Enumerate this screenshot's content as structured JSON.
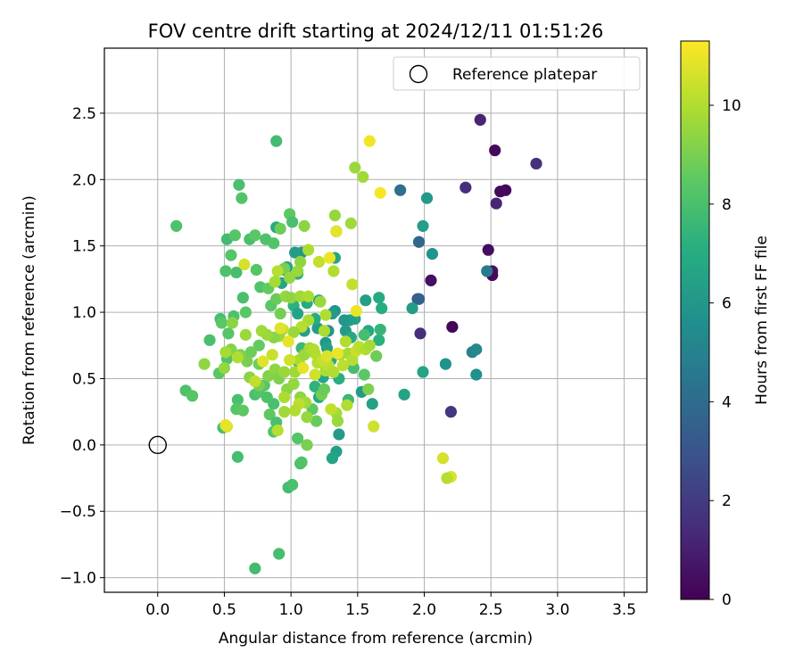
{
  "chart_data": {
    "type": "scatter",
    "title": "FOV centre drift starting at 2024/12/11 01:51:26",
    "xlabel": "Angular distance from reference (arcmin)",
    "ylabel": "Rotation from reference (arcmin)",
    "xlim": [
      -0.4,
      3.67
    ],
    "ylim": [
      -1.11,
      2.99
    ],
    "xticks": [
      "0.0",
      "0.5",
      "1.0",
      "1.5",
      "2.0",
      "2.5",
      "3.0",
      "3.5"
    ],
    "xtick_values": [
      0,
      0.5,
      1,
      1.5,
      2,
      2.5,
      3,
      3.5
    ],
    "yticks": [
      "−1.0",
      "−0.5",
      "0.0",
      "0.5",
      "1.0",
      "1.5",
      "2.0",
      "2.5"
    ],
    "ytick_values": [
      -1,
      -0.5,
      0,
      0.5,
      1,
      1.5,
      2,
      2.5
    ],
    "grid": true,
    "legend": {
      "placement": "top-right",
      "entries": [
        {
          "label": "Reference platepar",
          "marker": "open-circle"
        }
      ]
    },
    "reference": {
      "x": 0,
      "y": 0
    },
    "colorbar": {
      "label": "Hours from first FF file",
      "ticks": [
        "0",
        "2",
        "4",
        "6",
        "8",
        "10"
      ],
      "tick_values": [
        0,
        2,
        4,
        6,
        8,
        10
      ],
      "range": [
        0,
        11.3
      ],
      "colormap": "viridis"
    },
    "points": [
      [
        2.42,
        2.45,
        1.2
      ],
      [
        2.84,
        2.12,
        1.6
      ],
      [
        2.31,
        1.94,
        1.5
      ],
      [
        2.61,
        1.92,
        0.2
      ],
      [
        2.57,
        1.91,
        0.3
      ],
      [
        2.53,
        2.22,
        0.3
      ],
      [
        2.54,
        1.82,
        1.2
      ],
      [
        2.48,
        1.47,
        0.4
      ],
      [
        2.51,
        1.31,
        0.6
      ],
      [
        2.51,
        1.28,
        0.3
      ],
      [
        2.05,
        1.24,
        0.5
      ],
      [
        2.21,
        0.89,
        0.2
      ],
      [
        1.97,
        0.84,
        1.5
      ],
      [
        2.2,
        0.25,
        1.8
      ],
      [
        1.95,
        1.1,
        3.0
      ],
      [
        1.96,
        1.1,
        3.5
      ],
      [
        1.96,
        1.53,
        3.8
      ],
      [
        1.82,
        1.92,
        4.2
      ],
      [
        2.47,
        1.31,
        4.7
      ],
      [
        2.36,
        0.7,
        5.0
      ],
      [
        2.39,
        0.72,
        5.3
      ],
      [
        2.39,
        0.53,
        5.7
      ],
      [
        2.16,
        0.61,
        5.8
      ],
      [
        2.06,
        1.44,
        5.9
      ],
      [
        2.02,
        1.86,
        6.1
      ],
      [
        1.99,
        1.65,
        6.4
      ],
      [
        1.91,
        1.03,
        6.3
      ],
      [
        1.99,
        0.55,
        6.6
      ],
      [
        1.85,
        0.38,
        6.6
      ],
      [
        1.68,
        1.03,
        7.0
      ],
      [
        1.66,
        1.11,
        6.9
      ],
      [
        1.56,
        1.09,
        6.4
      ],
      [
        1.58,
        0.86,
        6.8
      ],
      [
        1.61,
        0.31,
        6.5
      ],
      [
        1.53,
        0.4,
        6.2
      ],
      [
        1.48,
        0.95,
        6.6
      ],
      [
        1.44,
        0.94,
        6.4
      ],
      [
        1.41,
        0.86,
        6.2
      ],
      [
        1.4,
        0.94,
        6.0
      ],
      [
        1.36,
        0.08,
        6.2
      ],
      [
        1.34,
        -0.05,
        6.4
      ],
      [
        1.31,
        -0.1,
        6.6
      ],
      [
        1.33,
        1.41,
        6.7
      ],
      [
        1.34,
        1.61,
        6.0
      ],
      [
        1.33,
        1.01,
        5.9
      ],
      [
        1.31,
        0.99,
        6.2
      ],
      [
        1.28,
        0.86,
        5.8
      ],
      [
        1.26,
        0.77,
        6.0
      ],
      [
        1.24,
        0.51,
        6.7
      ],
      [
        1.21,
        1.09,
        6.8
      ],
      [
        1.2,
        0.88,
        6.3
      ],
      [
        1.18,
        0.95,
        7.0
      ],
      [
        1.12,
        1.07,
        6.9
      ],
      [
        1.08,
        1.45,
        6.0
      ],
      [
        1.05,
        1.29,
        7.0
      ],
      [
        1.03,
        1.45,
        6.3
      ],
      [
        1.02,
        1.05,
        7.2
      ],
      [
        0.97,
        1.34,
        6.6
      ],
      [
        0.95,
        1.32,
        6.2
      ],
      [
        0.93,
        1.22,
        6.7
      ],
      [
        0.89,
        1.64,
        6.9
      ],
      [
        1.45,
        0.81,
        6.8
      ],
      [
        1.66,
        0.79,
        7.2
      ],
      [
        1.67,
        0.87,
        7.5
      ],
      [
        1.55,
        0.83,
        7.9
      ],
      [
        1.21,
        0.36,
        6.9
      ],
      [
        1.3,
        0.64,
        6.9
      ],
      [
        1.27,
        0.73,
        6.5
      ],
      [
        1.1,
        0.86,
        6.4
      ],
      [
        1.05,
        0.99,
        6.6
      ],
      [
        1.36,
        0.5,
        7.1
      ],
      [
        1.43,
        0.34,
        7.6
      ],
      [
        1.47,
        0.58,
        7.9
      ],
      [
        1.22,
        0.63,
        7.4
      ],
      [
        1.18,
        0.44,
        7.3
      ],
      [
        1.06,
        0.62,
        7.2
      ],
      [
        1.08,
        0.73,
        7.6
      ],
      [
        0.89,
        2.29,
        7.8
      ],
      [
        0.61,
        1.96,
        8.0
      ],
      [
        0.63,
        1.86,
        8.2
      ],
      [
        0.14,
        1.65,
        8.1
      ],
      [
        0.52,
        1.55,
        7.8
      ],
      [
        0.58,
        1.58,
        8.3
      ],
      [
        0.69,
        1.55,
        8.0
      ],
      [
        0.73,
        1.58,
        8.4
      ],
      [
        0.81,
        1.55,
        8.1
      ],
      [
        0.87,
        1.52,
        8.2
      ],
      [
        0.99,
        1.74,
        8.5
      ],
      [
        1.01,
        1.68,
        8.0
      ],
      [
        0.55,
        1.43,
        8.3
      ],
      [
        0.59,
        1.3,
        7.9
      ],
      [
        0.51,
        1.31,
        8.1
      ],
      [
        0.64,
        1.11,
        8.0
      ],
      [
        0.66,
        1.0,
        8.4
      ],
      [
        0.57,
        0.97,
        8.1
      ],
      [
        0.47,
        0.95,
        7.9
      ],
      [
        0.48,
        0.92,
        8.4
      ],
      [
        0.53,
        0.84,
        8.3
      ],
      [
        0.39,
        0.79,
        8.0
      ],
      [
        0.52,
        0.65,
        8.2
      ],
      [
        0.46,
        0.54,
        8.4
      ],
      [
        0.21,
        0.41,
        8.1
      ],
      [
        0.26,
        0.37,
        8.3
      ],
      [
        0.6,
        0.34,
        8.0
      ],
      [
        0.59,
        0.27,
        8.3
      ],
      [
        0.64,
        0.26,
        8.5
      ],
      [
        0.73,
        0.38,
        8.0
      ],
      [
        0.76,
        0.4,
        8.2
      ],
      [
        0.8,
        0.45,
        8.3
      ],
      [
        0.82,
        0.36,
        8.1
      ],
      [
        0.87,
        0.31,
        8.0
      ],
      [
        0.84,
        0.23,
        8.5
      ],
      [
        0.87,
        0.1,
        8.2
      ],
      [
        0.89,
        0.17,
        8.0
      ],
      [
        0.6,
        -0.09,
        7.9
      ],
      [
        0.49,
        0.13,
        8.0
      ],
      [
        0.73,
        -0.93,
        7.8
      ],
      [
        0.91,
        -0.82,
        7.9
      ],
      [
        0.98,
        -0.32,
        7.8
      ],
      [
        1.01,
        -0.3,
        8.0
      ],
      [
        1.07,
        -0.14,
        7.9
      ],
      [
        1.08,
        -0.13,
        8.2
      ],
      [
        1.05,
        0.05,
        8.3
      ],
      [
        1.16,
        0.27,
        8.5
      ],
      [
        1.19,
        0.18,
        8.7
      ],
      [
        1.12,
        0.0,
        9.0
      ],
      [
        1.23,
        0.38,
        8.9
      ],
      [
        1.25,
        0.42,
        8.7
      ],
      [
        0.92,
        1.63,
        8.8
      ],
      [
        0.95,
        1.33,
        9.0
      ],
      [
        0.74,
        1.32,
        8.3
      ],
      [
        0.77,
        1.19,
        8.2
      ],
      [
        0.83,
        1.18,
        8.6
      ],
      [
        0.85,
        1.05,
        8.4
      ],
      [
        0.89,
        1.1,
        8.7
      ],
      [
        0.92,
        0.99,
        8.9
      ],
      [
        0.76,
        0.75,
        8.6
      ],
      [
        0.7,
        0.7,
        8.8
      ],
      [
        0.76,
        0.61,
        8.8
      ],
      [
        0.67,
        0.63,
        9.0
      ],
      [
        0.62,
        0.68,
        9.1
      ],
      [
        0.55,
        0.72,
        9.2
      ],
      [
        0.69,
        0.51,
        9.3
      ],
      [
        0.76,
        0.45,
        9.0
      ],
      [
        0.83,
        0.52,
        9.2
      ],
      [
        0.88,
        0.57,
        9.4
      ],
      [
        0.91,
        0.5,
        9.1
      ],
      [
        0.95,
        0.55,
        9.6
      ],
      [
        0.97,
        0.42,
        9.3
      ],
      [
        1.02,
        0.46,
        9.5
      ],
      [
        1.07,
        0.36,
        9.4
      ],
      [
        1.11,
        0.32,
        9.7
      ],
      [
        1.03,
        0.55,
        9.7
      ],
      [
        1.06,
        0.64,
        9.9
      ],
      [
        1.1,
        0.68,
        9.6
      ],
      [
        1.14,
        0.73,
        9.8
      ],
      [
        1.18,
        0.69,
        10.0
      ],
      [
        1.2,
        0.62,
        9.7
      ],
      [
        1.26,
        0.56,
        9.9
      ],
      [
        1.28,
        0.6,
        10.2
      ],
      [
        1.32,
        0.55,
        10.0
      ],
      [
        1.37,
        0.68,
        9.8
      ],
      [
        1.41,
        0.78,
        10.0
      ],
      [
        1.43,
        0.69,
        9.8
      ],
      [
        1.46,
        0.64,
        10.1
      ],
      [
        1.49,
        0.71,
        10.4
      ],
      [
        1.51,
        0.74,
        10.2
      ],
      [
        1.56,
        0.72,
        10.0
      ],
      [
        1.59,
        0.75,
        9.8
      ],
      [
        1.48,
        2.09,
        9.6
      ],
      [
        1.54,
        2.02,
        9.7
      ],
      [
        1.45,
        1.67,
        9.7
      ],
      [
        1.33,
        1.73,
        9.5
      ],
      [
        1.1,
        1.65,
        9.3
      ],
      [
        1.32,
        1.31,
        10.0
      ],
      [
        1.21,
        1.38,
        10.3
      ],
      [
        1.13,
        1.47,
        9.9
      ],
      [
        1.07,
        1.38,
        9.4
      ],
      [
        1.05,
        1.31,
        9.6
      ],
      [
        0.99,
        1.26,
        9.5
      ],
      [
        0.9,
        1.31,
        10.1
      ],
      [
        0.88,
        1.23,
        9.8
      ],
      [
        0.96,
        1.12,
        9.5
      ],
      [
        1.0,
        1.11,
        9.4
      ],
      [
        1.07,
        1.12,
        9.7
      ],
      [
        1.13,
        1.12,
        9.9
      ],
      [
        1.22,
        1.08,
        9.6
      ],
      [
        1.26,
        0.98,
        10.0
      ],
      [
        1.13,
        0.94,
        9.9
      ],
      [
        1.08,
        0.89,
        10.1
      ],
      [
        1.02,
        0.85,
        9.6
      ],
      [
        0.94,
        0.87,
        10.4
      ],
      [
        0.91,
        0.82,
        9.6
      ],
      [
        0.87,
        0.81,
        9.3
      ],
      [
        0.82,
        0.83,
        9.6
      ],
      [
        0.78,
        0.86,
        9.7
      ],
      [
        0.66,
        0.83,
        9.6
      ],
      [
        0.56,
        0.92,
        9.3
      ],
      [
        0.5,
        0.58,
        9.5
      ],
      [
        0.35,
        0.61,
        9.4
      ],
      [
        0.51,
        0.7,
        9.8
      ],
      [
        0.6,
        0.66,
        10.0
      ],
      [
        0.65,
        1.36,
        10.6
      ],
      [
        0.92,
        0.88,
        10.8
      ],
      [
        0.98,
        0.78,
        10.9
      ],
      [
        0.86,
        0.68,
        10.4
      ],
      [
        0.79,
        0.63,
        10.8
      ],
      [
        0.99,
        0.64,
        10.5
      ],
      [
        1.09,
        0.58,
        10.9
      ],
      [
        1.18,
        0.53,
        10.5
      ],
      [
        1.2,
        0.62,
        10.1
      ],
      [
        1.24,
        0.64,
        10.4
      ],
      [
        1.27,
        0.67,
        10.7
      ],
      [
        1.35,
        0.69,
        11.0
      ],
      [
        1.39,
        0.6,
        10.2
      ],
      [
        1.46,
        1.21,
        10.3
      ],
      [
        1.49,
        1.01,
        11.0
      ],
      [
        1.42,
        0.3,
        10.0
      ],
      [
        1.34,
        0.24,
        9.8
      ],
      [
        1.3,
        0.27,
        10.3
      ],
      [
        1.06,
        0.31,
        10.2
      ],
      [
        1.03,
        0.26,
        10.0
      ],
      [
        0.95,
        0.36,
        9.9
      ],
      [
        1.17,
        0.72,
        10.0
      ],
      [
        1.25,
        0.86,
        9.9
      ],
      [
        1.62,
        0.14,
        10.5
      ],
      [
        0.52,
        0.14,
        10.6
      ],
      [
        0.51,
        0.15,
        10.9
      ],
      [
        0.73,
        0.48,
        10.3
      ],
      [
        0.9,
        0.11,
        10.1
      ],
      [
        0.95,
        0.25,
        9.7
      ],
      [
        1.59,
        2.29,
        11.1
      ],
      [
        1.67,
        1.9,
        11.2
      ],
      [
        1.29,
        1.41,
        11.0
      ],
      [
        1.34,
        1.61,
        10.9
      ],
      [
        2.14,
        -0.1,
        10.6
      ],
      [
        2.2,
        -0.24,
        10.7
      ],
      [
        2.17,
        -0.25,
        10.1
      ],
      [
        1.35,
        0.18,
        9.6
      ],
      [
        1.12,
        0.21,
        9.5
      ],
      [
        1.58,
        0.42,
        9.1
      ],
      [
        1.64,
        0.67,
        8.8
      ],
      [
        1.55,
        0.53,
        8.4
      ]
    ]
  }
}
